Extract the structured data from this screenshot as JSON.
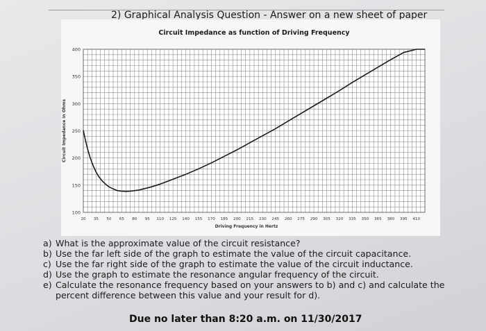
{
  "heading": "2) Graphical Analysis Question - Answer on a new sheet of paper",
  "chart_data": {
    "type": "line",
    "title": "Circuit Impedance as function of Driving Frequency",
    "xlabel": "Driving Frequency in Hertz",
    "ylabel": "Circuit Impedance in Ohms",
    "xlim": [
      20,
      420
    ],
    "ylim": [
      100,
      400
    ],
    "grid": true,
    "x_ticks": [
      20,
      35,
      50,
      65,
      80,
      95,
      110,
      125,
      140,
      155,
      170,
      185,
      200,
      215,
      230,
      245,
      260,
      275,
      290,
      305,
      320,
      335,
      350,
      365,
      380,
      395,
      410
    ],
    "y_ticks": [
      100,
      150,
      200,
      250,
      300,
      350,
      400
    ],
    "series": [
      {
        "x": [
          20,
          22,
          24,
          26,
          28,
          30,
          32,
          35,
          38,
          42,
          46,
          50,
          55,
          60,
          65,
          70,
          75,
          80,
          85,
          90,
          95,
          100,
          110,
          120,
          130,
          140,
          155,
          170,
          185,
          200,
          215,
          230,
          245,
          260,
          275,
          290,
          305,
          320,
          335,
          350,
          365,
          380,
          395,
          410,
          420
        ],
        "y": [
          251,
          236,
          223,
          211,
          201,
          192,
          184,
          174,
          166,
          158,
          152,
          147,
          143,
          140,
          139,
          138.5,
          139,
          140,
          141,
          143,
          145,
          147,
          152,
          158,
          164,
          170,
          180,
          191,
          203,
          215,
          228,
          241,
          254,
          268,
          282,
          296,
          310,
          324,
          339,
          353,
          367,
          381,
          394,
          405,
          412
        ],
        "color": "#1a1a1a"
      }
    ]
  },
  "questions": [
    {
      "letter": "a)",
      "text": "What is the approximate value of the circuit resistance?"
    },
    {
      "letter": "b)",
      "text": "Use the far left side of the graph to estimate the value of the circuit capacitance."
    },
    {
      "letter": "c)",
      "text": "Use the far right side of the graph to estimate the value of the circuit inductance."
    },
    {
      "letter": "d)",
      "text": "Use the graph to estimate the resonance angular frequency of the circuit."
    },
    {
      "letter": "e)",
      "text": "Calculate the resonance frequency based on your answers to b) and c) and calculate the percent difference between this value and your result for d)."
    }
  ],
  "due": "Due no later than 8:20 a.m. on 11/30/2017"
}
